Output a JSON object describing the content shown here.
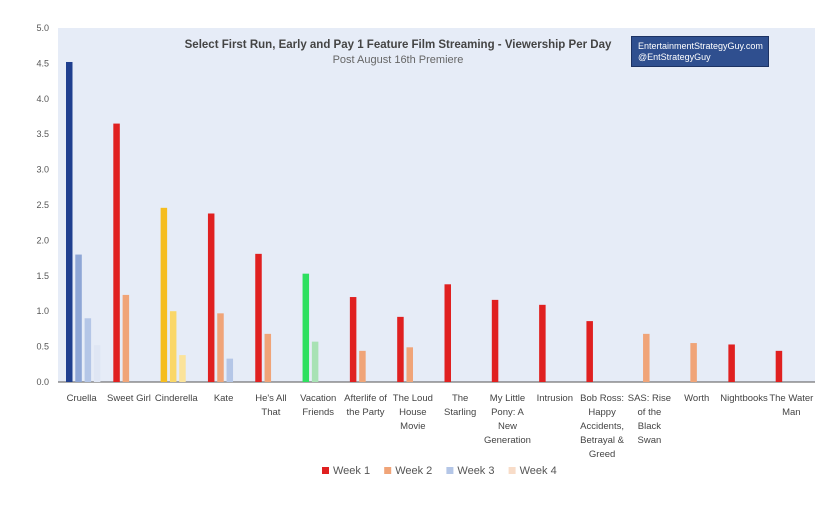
{
  "chart_data": {
    "type": "bar",
    "title": "Select First Run, Early and Pay 1 Feature Film Streaming - Viewership Per Day",
    "subtitle": "Post August 16th Premiere",
    "xlabel": "",
    "ylabel": "",
    "ylim": [
      0,
      5
    ],
    "yticks": [
      "0.0",
      "0.5",
      "1.0",
      "1.5",
      "2.0",
      "2.5",
      "3.0",
      "3.5",
      "4.0",
      "4.5",
      "5.0"
    ],
    "categories": [
      [
        "Cruella"
      ],
      [
        "Sweet Girl"
      ],
      [
        "Cinderella"
      ],
      [
        "Kate"
      ],
      [
        "He's All",
        "That"
      ],
      [
        "Vacation",
        "Friends"
      ],
      [
        "Afterlife of",
        "the Party"
      ],
      [
        "The Loud",
        "House",
        "Movie"
      ],
      [
        "The",
        "Starling"
      ],
      [
        "My Little",
        "Pony: A",
        "New",
        "Generation"
      ],
      [
        "Intrusion"
      ],
      [
        "Bob Ross:",
        "Happy",
        "Accidents,",
        "Betrayal &",
        "Greed"
      ],
      [
        "SAS: Rise",
        "of the",
        "Black",
        "Swan"
      ],
      [
        "Worth"
      ],
      [
        "Nightbooks"
      ],
      [
        "The Water",
        "Man"
      ]
    ],
    "series": [
      {
        "name": "Week 1",
        "color": "#e02020",
        "values": [
          4.52,
          3.65,
          2.46,
          2.38,
          1.81,
          1.53,
          1.2,
          0.92,
          1.38,
          1.16,
          1.09,
          0.86,
          null,
          null,
          0.53,
          0.44
        ]
      },
      {
        "name": "Week 2",
        "color": "#f0a478",
        "values": [
          1.8,
          1.23,
          1.0,
          0.97,
          0.68,
          0.57,
          0.44,
          0.49,
          null,
          null,
          null,
          null,
          0.68,
          0.55,
          null,
          null
        ]
      },
      {
        "name": "Week 3",
        "color": "#b4c6e7",
        "values": [
          0.9,
          null,
          0.38,
          0.33,
          null,
          null,
          null,
          null,
          null,
          null,
          null,
          null,
          null,
          null,
          null,
          null
        ]
      },
      {
        "name": "Week 4",
        "color": "#f8dcc8",
        "values": [
          0.52,
          null,
          null,
          null,
          null,
          null,
          null,
          null,
          null,
          null,
          null,
          null,
          null,
          null,
          null,
          null
        ]
      }
    ],
    "highlight_colors": {
      "Cruella": [
        "#1f3f8f",
        "#8ea6d6",
        "#b4c6e7",
        "#dfe6f4"
      ],
      "Cinderella": [
        "#f5bd1f",
        "#fad768",
        "#fbe39a",
        "#fdf0cc"
      ],
      "Vacation Friends": [
        "#2ee05f",
        "#a8e2b4",
        "#c9eed2",
        "#e6f7ea"
      ]
    },
    "legend_position": "bottom",
    "grid": false,
    "plot_background": "#e6ecf7"
  },
  "credit": {
    "line1": "EntertainmentStrategyGuy.com",
    "line2": "@EntStrategyGuy"
  }
}
